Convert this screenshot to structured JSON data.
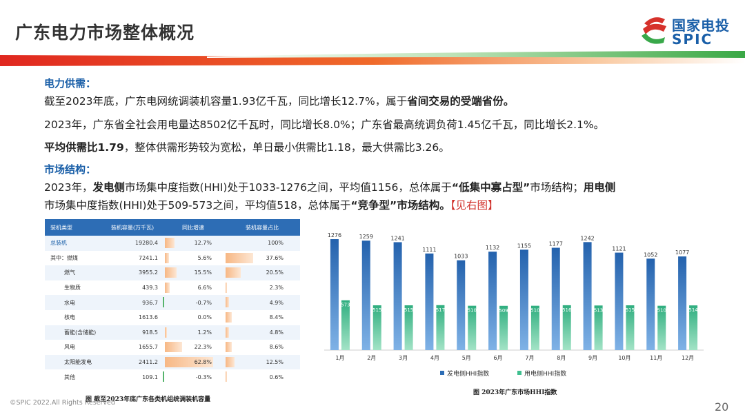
{
  "title": "广东电力市场整体概况",
  "logo": {
    "cn": "国家电投",
    "en": "SPIC"
  },
  "supply": {
    "heading": "电力供需：",
    "p1_a": "截至2023年底，广东电网统调装机容量1.93亿千瓦，同比增长12.7%，属于",
    "p1_b": "省间交易的受端省份。",
    "p2": "2023年，广东省全社会用电量达8502亿千瓦时，同比增长8.0%；广东省最高统调负荷1.45亿千瓦，同比增长2.1%。",
    "p3_a": "平均供需比1.79",
    "p3_b": "，整体供需形势较为宽松，单日最小供需比1.18，最大供需比3.26。"
  },
  "market": {
    "heading": "市场结构：",
    "l1_a": "2023年，",
    "l1_b": "发电侧",
    "l1_c": "市场集中度指数(HHI)处于1033-1276之间，平均值1156，总体属于",
    "l1_d": "“低集中寡占型”",
    "l1_e": "市场结构；",
    "l1_f": "用电侧",
    "l2_a": "市场集中度指数(HHI)处于509-573之间，平均值518，总体属于",
    "l2_b": "“竞争型”市场结构。",
    "l2_c": "【见右图】"
  },
  "table": {
    "headers": [
      "装机类型",
      "装机容量(万千瓦)",
      "同比增速",
      "装机容量占比"
    ],
    "rows": [
      {
        "type": "总装机",
        "cap": "19280.4",
        "growth": "12.7%",
        "g": 12.7,
        "share": "100%",
        "s": 100
      },
      {
        "type": "其中：燃煤",
        "cap": "7241.1",
        "growth": "5.6%",
        "g": 5.6,
        "share": "37.6%",
        "s": 37.6
      },
      {
        "type": "燃气",
        "cap": "3955.2",
        "growth": "15.5%",
        "g": 15.5,
        "share": "20.5%",
        "s": 20.5
      },
      {
        "type": "生物质",
        "cap": "439.3",
        "growth": "6.6%",
        "g": 6.6,
        "share": "2.3%",
        "s": 2.3
      },
      {
        "type": "水电",
        "cap": "936.7",
        "growth": "-0.7%",
        "g": -0.7,
        "share": "4.9%",
        "s": 4.9
      },
      {
        "type": "核电",
        "cap": "1613.6",
        "growth": "0.0%",
        "g": 0,
        "share": "8.4%",
        "s": 8.4
      },
      {
        "type": "蓄能(含储能)",
        "cap": "918.5",
        "growth": "1.2%",
        "g": 1.2,
        "share": "4.8%",
        "s": 4.8
      },
      {
        "type": "风电",
        "cap": "1655.7",
        "growth": "22.3%",
        "g": 22.3,
        "share": "8.6%",
        "s": 8.6
      },
      {
        "type": "太阳能发电",
        "cap": "2411.2",
        "growth": "62.8%",
        "g": 62.8,
        "share": "12.5%",
        "s": 12.5
      },
      {
        "type": "其他",
        "cap": "109.1",
        "growth": "-0.3%",
        "g": -0.3,
        "share": "0.6%",
        "s": 0.6
      }
    ],
    "caption": "图  截至2023年底广东各类机组统调装机容量"
  },
  "chart_data": {
    "type": "bar",
    "categories": [
      "1月",
      "2月",
      "3月",
      "4月",
      "5月",
      "6月",
      "7月",
      "8月",
      "9月",
      "10月",
      "11月",
      "12月"
    ],
    "series": [
      {
        "name": "发电侧HHI指数",
        "values": [
          1276,
          1259,
          1241,
          1111,
          1033,
          1132,
          1155,
          1177,
          1242,
          1121,
          1052,
          1077
        ],
        "color": "#2d6db5"
      },
      {
        "name": "用电侧HHI指数",
        "values": [
          573,
          515,
          515,
          517,
          510,
          509,
          510,
          516,
          513,
          515,
          510,
          514
        ],
        "color": "#3fbf8f"
      }
    ],
    "ylim": [
      0,
      1300
    ],
    "legend": "bottom",
    "caption": "图  2023年广东市场HHI指数"
  },
  "footer": "©SPIC 2022.All Rights Reserved",
  "page_number": "20",
  "colors": {
    "accent": "#1a5fa8",
    "red": "#d0302a",
    "green": "#3fbf8f"
  }
}
